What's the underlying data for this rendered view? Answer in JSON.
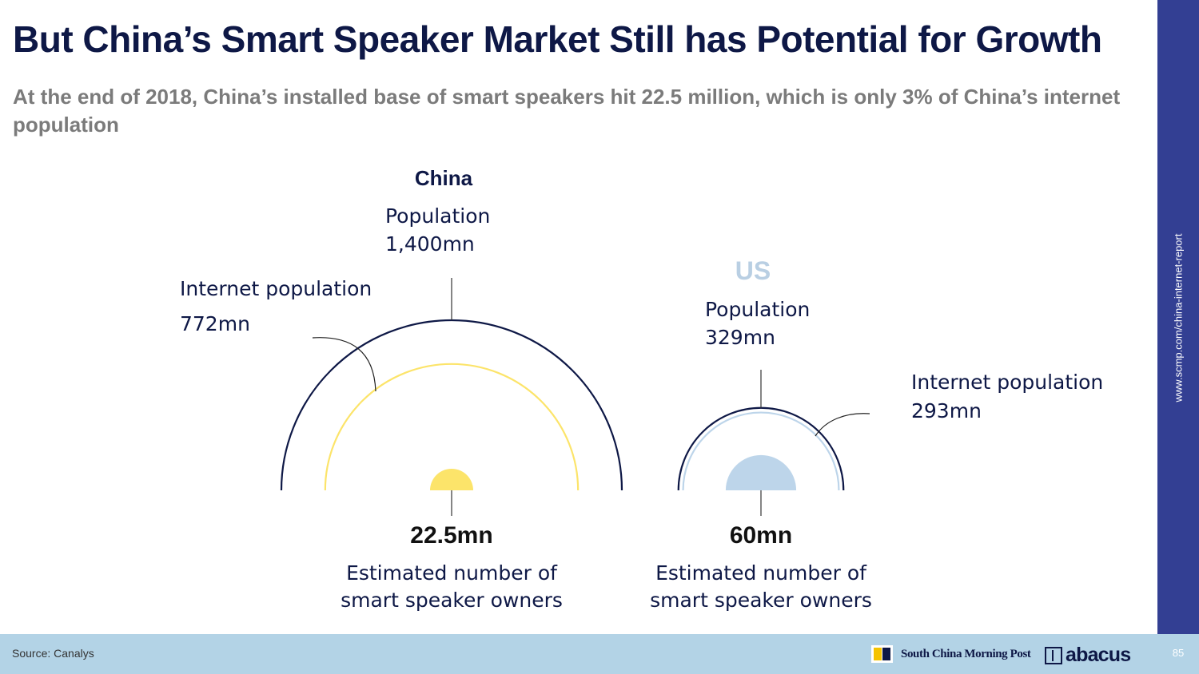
{
  "slide": {
    "title": "But China’s Smart Speaker Market Still has Potential for Growth",
    "subtitle": "At the end of 2018, China’s installed base of smart speakers hit 22.5 million, which is only 3% of China’s internet population",
    "sidebar_url": "www.scmp.com/china-internet-report",
    "source": "Source: Canalys",
    "scmp_logo_text": "South China Morning Post",
    "abacus_logo_text": "abacus",
    "page_number": "85"
  },
  "colors": {
    "navy": "#0e1846",
    "china_accent": "#fce46a",
    "us_accent": "#bdd5ea",
    "us_label": "#b9cfe3",
    "sidebar": "#333f93",
    "footer": "#b3d3e6"
  },
  "chart_data": {
    "type": "nested-semicircle",
    "title": "But China’s Smart Speaker Market Still has Potential for Growth",
    "unit": "mn",
    "series": [
      {
        "name": "China",
        "population": 1400,
        "internet_population": 772,
        "smart_speaker_owners": 22.5,
        "population_label": "Population",
        "population_value": "1,400mn",
        "internet_label": "Internet population",
        "internet_value": "772mn",
        "owners_value": "22.5mn",
        "owners_label": "Estimated number of smart speaker owners"
      },
      {
        "name": "US",
        "population": 329,
        "internet_population": 293,
        "smart_speaker_owners": 60,
        "population_label": "Population",
        "population_value": "329mn",
        "internet_label": "Internet population",
        "internet_value": "293mn",
        "owners_value": "60mn",
        "owners_label": "Estimated number of smart speaker owners"
      }
    ]
  }
}
